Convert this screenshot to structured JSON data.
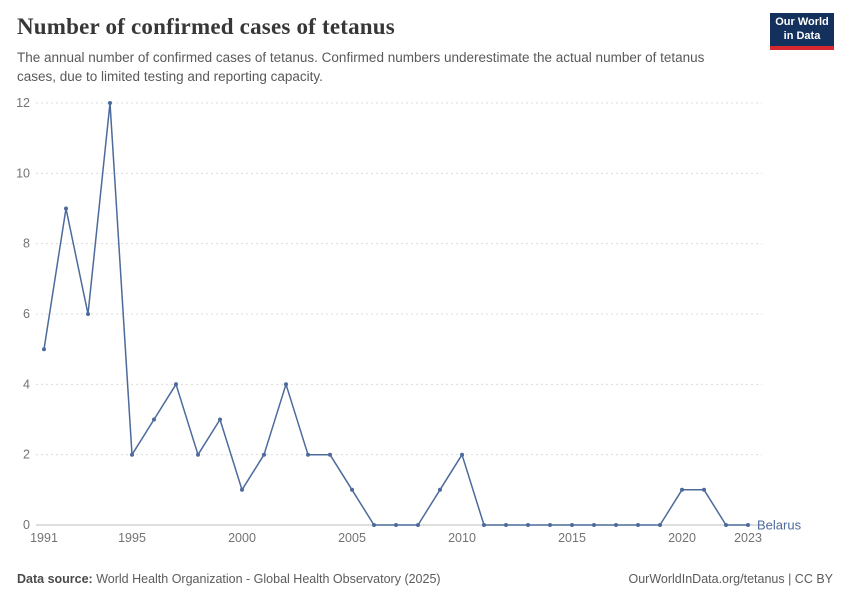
{
  "header": {
    "title": "Number of confirmed cases of tetanus",
    "subtitle": "The annual number of confirmed cases of tetanus. Confirmed numbers underestimate the actual number of tetanus cases, due to limited testing and reporting capacity."
  },
  "logo": {
    "line1": "Our World",
    "line2": "in Data",
    "bg_color": "#13315c",
    "accent_color": "#d7282f"
  },
  "chart_data": {
    "type": "line",
    "title": "Number of confirmed cases of tetanus",
    "xlabel": "",
    "ylabel": "",
    "xlim": [
      1991,
      2023
    ],
    "ylim": [
      0,
      12
    ],
    "x_ticks": [
      1991,
      1995,
      2000,
      2005,
      2010,
      2015,
      2020,
      2023
    ],
    "y_ticks": [
      0,
      2,
      4,
      6,
      8,
      10,
      12
    ],
    "grid": "horizontal-dashed",
    "legend_position": "end-of-line-label",
    "series": [
      {
        "name": "Belarus",
        "color": "#4c6a9c",
        "x": [
          1991,
          1992,
          1993,
          1994,
          1995,
          1996,
          1997,
          1998,
          1999,
          2000,
          2001,
          2002,
          2003,
          2004,
          2005,
          2006,
          2007,
          2008,
          2009,
          2010,
          2011,
          2012,
          2013,
          2014,
          2015,
          2016,
          2017,
          2018,
          2019,
          2020,
          2021,
          2022,
          2023
        ],
        "values": [
          5,
          9,
          6,
          12,
          2,
          3,
          4,
          2,
          3,
          1,
          2,
          4,
          2,
          2,
          1,
          0,
          0,
          0,
          1,
          2,
          0,
          0,
          0,
          0,
          0,
          0,
          0,
          0,
          0,
          1,
          1,
          0,
          0
        ]
      }
    ],
    "colors": {
      "grid_line": "#dcdcdc",
      "zero_line": "#bcbcbc",
      "tick_label": "#737373"
    }
  },
  "footer": {
    "source_label": "Data source:",
    "source_text": " World Health Organization - Global Health Observatory (2025)",
    "credit": "OurWorldInData.org/tetanus | CC BY"
  }
}
